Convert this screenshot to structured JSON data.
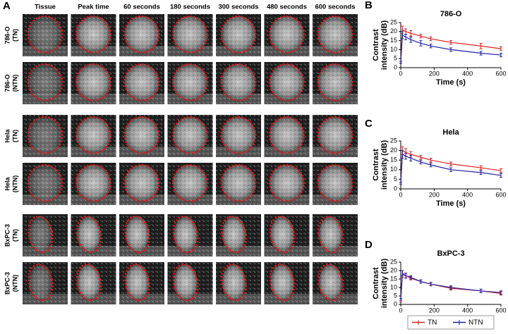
{
  "panel_a": {
    "label": "A",
    "columns": [
      "Tissue",
      "Peak time",
      "60 seconds",
      "180 seconds",
      "300 seconds",
      "480 seconds",
      "600 seconds"
    ],
    "rows": [
      [
        "786-O",
        "(TN)"
      ],
      [
        "786-O",
        "(NTN)"
      ],
      [
        "Hela",
        "(TN)"
      ],
      [
        "Hela",
        "(NTN)"
      ],
      [
        "BxPC-3",
        "(TN)"
      ],
      [
        "BxPC-3",
        "(NTN)"
      ]
    ]
  },
  "legend": [
    {
      "name": "TN",
      "color": "#e02020"
    },
    {
      "name": "NTN",
      "color": "#2020a0"
    }
  ],
  "chart_data": [
    {
      "type": "line",
      "panel": "B",
      "title": "786-O",
      "y_label": [
        "Contrast",
        "intensity (dB)"
      ],
      "x_label": "Time (s)",
      "x": [
        0,
        10,
        30,
        60,
        120,
        180,
        300,
        480,
        600
      ],
      "xlim": [
        0,
        600
      ],
      "xticks": [
        0,
        200,
        400,
        600
      ],
      "ylim": [
        0,
        25
      ],
      "yticks": [
        0,
        5,
        10,
        15,
        20,
        25
      ],
      "series": [
        {
          "color": "#e02020",
          "values": [
            3,
            21,
            20,
            19,
            17.5,
            16,
            14,
            12,
            10.5
          ],
          "errors": [
            0.5,
            2,
            1.5,
            1.5,
            1,
            1,
            1,
            1.5,
            1
          ]
        },
        {
          "color": "#2020a0",
          "values": [
            3,
            18,
            17,
            15.5,
            13.5,
            12,
            10,
            8,
            7
          ],
          "errors": [
            0.5,
            2,
            1.5,
            1.5,
            1.5,
            1,
            1,
            1,
            1
          ]
        }
      ]
    },
    {
      "type": "line",
      "panel": "C",
      "title": "Hela",
      "y_label": [
        "Contrast",
        "intensity (dB)"
      ],
      "x_label": "Time (s)",
      "x": [
        0,
        10,
        30,
        60,
        120,
        180,
        300,
        480,
        600
      ],
      "xlim": [
        0,
        600
      ],
      "xticks": [
        0,
        200,
        400,
        600
      ],
      "ylim": [
        0,
        25
      ],
      "yticks": [
        0,
        5,
        10,
        15,
        20,
        25
      ],
      "series": [
        {
          "color": "#e02020",
          "values": [
            3,
            20,
            19,
            18,
            16.5,
            15,
            13,
            11,
            9.5
          ],
          "errors": [
            0.5,
            2,
            2,
            1.5,
            1,
            1,
            1,
            1,
            1
          ]
        },
        {
          "color": "#2020a0",
          "values": [
            3,
            18,
            17,
            16,
            14,
            12.5,
            10,
            8.5,
            7
          ],
          "errors": [
            0.5,
            2,
            1.5,
            1.5,
            1,
            1,
            1,
            1,
            1
          ]
        }
      ]
    },
    {
      "type": "line",
      "panel": "D",
      "title": "BxPC-3",
      "y_label": [
        "Contrast",
        "intensity (dB)"
      ],
      "x_label": "Time (s)",
      "x": [
        0,
        10,
        30,
        60,
        120,
        180,
        300,
        480,
        600
      ],
      "xlim": [
        0,
        600
      ],
      "xticks": [
        0,
        200,
        400,
        600
      ],
      "ylim": [
        0,
        25
      ],
      "yticks": [
        0,
        5,
        10,
        15,
        20,
        25
      ],
      "series": [
        {
          "color": "#e02020",
          "values": [
            2,
            18,
            17,
            15.5,
            13.5,
            12,
            9.5,
            8,
            6.5
          ],
          "errors": [
            0.5,
            2,
            1.5,
            1,
            1,
            1,
            1,
            1,
            1
          ]
        },
        {
          "color": "#2020a0",
          "values": [
            3,
            18.5,
            17,
            16,
            13.5,
            12,
            10,
            8,
            7
          ],
          "errors": [
            0.5,
            1.5,
            1.5,
            1,
            1,
            1,
            1,
            1,
            1
          ]
        }
      ]
    }
  ]
}
